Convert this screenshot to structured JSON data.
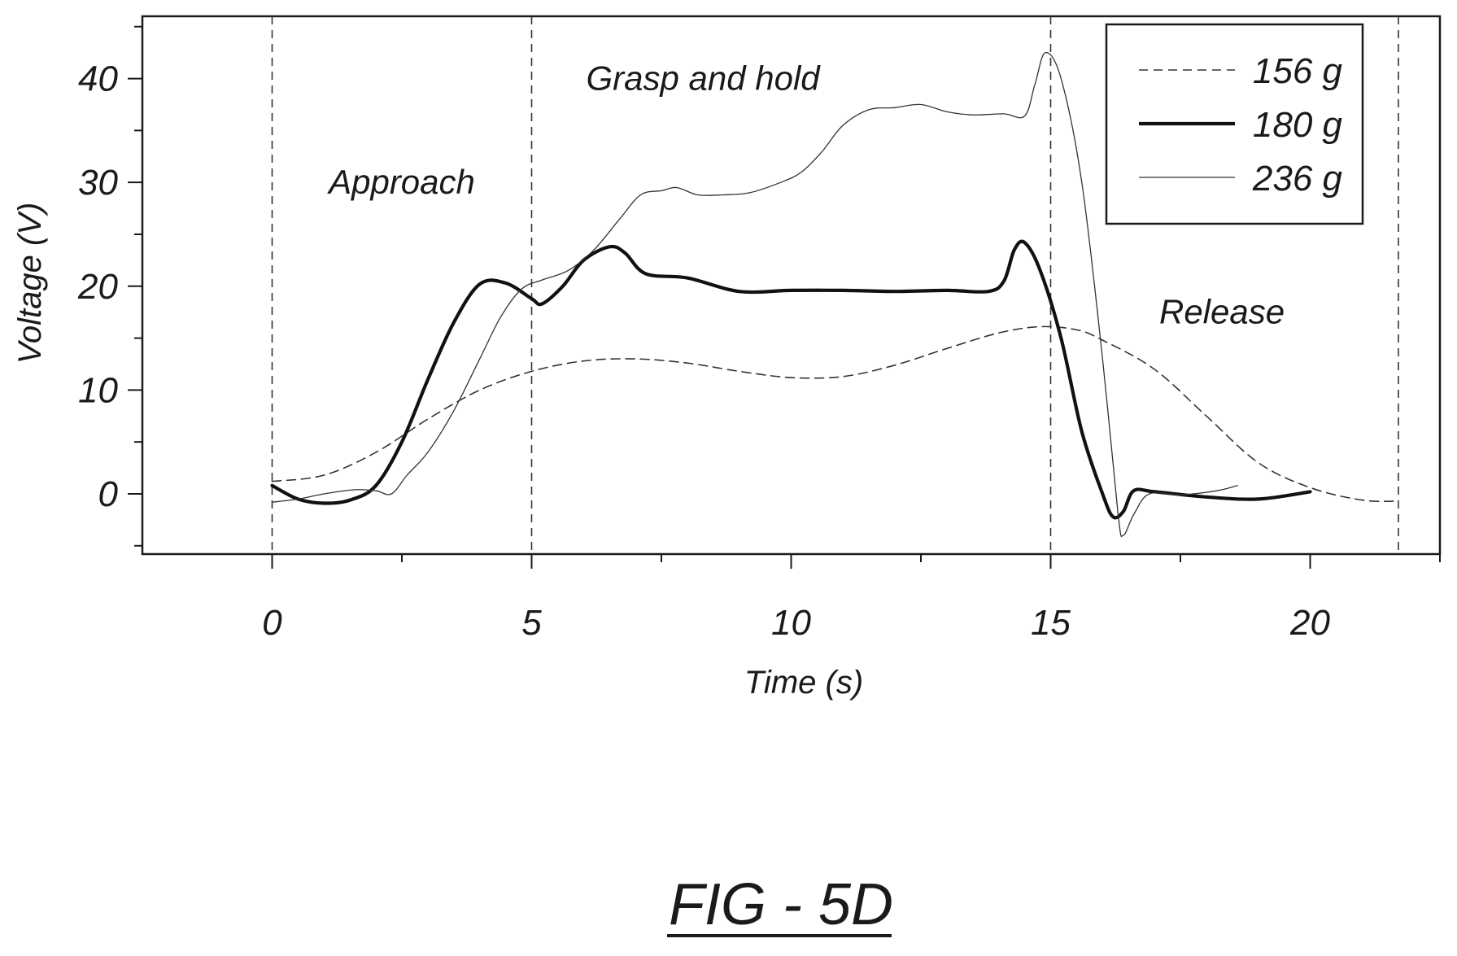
{
  "chart_data": {
    "type": "line",
    "xlabel": "Time (s)",
    "ylabel": "Voltage (V)",
    "xlim": [
      -2.5,
      22.5
    ],
    "ylim": [
      -5.8,
      46
    ],
    "x_ticks": [
      0,
      5,
      10,
      15,
      20
    ],
    "y_ticks": [
      0,
      10,
      20,
      30,
      40
    ],
    "x_minor_step": 2.5,
    "y_minor_step": 5,
    "grid": false,
    "legend_position": "top-right",
    "phase_boundaries": [
      0,
      5,
      15,
      21.7
    ],
    "annotations": [
      {
        "text": "Approach",
        "x": 2.5,
        "y": 30
      },
      {
        "text": "Grasp and hold",
        "x": 8.3,
        "y": 40
      },
      {
        "text": "Release",
        "x": 18.3,
        "y": 17.5
      }
    ],
    "series": [
      {
        "name": "156 g",
        "style": "dashed",
        "points": [
          [
            0,
            1.2
          ],
          [
            1,
            1.8
          ],
          [
            2,
            4
          ],
          [
            3,
            7.2
          ],
          [
            4,
            10
          ],
          [
            5,
            11.8
          ],
          [
            6,
            12.8
          ],
          [
            7,
            13
          ],
          [
            8,
            12.6
          ],
          [
            9,
            11.8
          ],
          [
            10,
            11.2
          ],
          [
            11,
            11.3
          ],
          [
            12,
            12.4
          ],
          [
            13,
            14
          ],
          [
            14,
            15.5
          ],
          [
            14.8,
            16.1
          ],
          [
            15.5,
            15.8
          ],
          [
            16,
            14.8
          ],
          [
            17,
            12
          ],
          [
            18,
            7.5
          ],
          [
            19,
            3
          ],
          [
            20,
            0.6
          ],
          [
            21,
            -0.6
          ],
          [
            21.7,
            -0.7
          ]
        ]
      },
      {
        "name": "180 g",
        "style": "thick",
        "points": [
          [
            0,
            0.8
          ],
          [
            0.5,
            -0.5
          ],
          [
            1,
            -0.9
          ],
          [
            1.5,
            -0.6
          ],
          [
            2,
            0.8
          ],
          [
            2.5,
            5
          ],
          [
            3,
            11
          ],
          [
            3.5,
            16.5
          ],
          [
            4,
            20.2
          ],
          [
            4.5,
            20.3
          ],
          [
            5,
            18.8
          ],
          [
            5.2,
            18.3
          ],
          [
            5.6,
            20
          ],
          [
            6,
            22.5
          ],
          [
            6.5,
            23.8
          ],
          [
            6.8,
            23.2
          ],
          [
            7.2,
            21.2
          ],
          [
            8,
            20.8
          ],
          [
            9,
            19.5
          ],
          [
            10,
            19.6
          ],
          [
            11,
            19.6
          ],
          [
            12,
            19.5
          ],
          [
            13,
            19.6
          ],
          [
            13.8,
            19.5
          ],
          [
            14.1,
            20.5
          ],
          [
            14.3,
            23.5
          ],
          [
            14.5,
            24.2
          ],
          [
            14.8,
            21.5
          ],
          [
            15.2,
            15
          ],
          [
            15.6,
            6
          ],
          [
            16,
            0
          ],
          [
            16.2,
            -2.2
          ],
          [
            16.4,
            -1.7
          ],
          [
            16.6,
            0.3
          ],
          [
            17,
            0.2
          ],
          [
            18,
            -0.3
          ],
          [
            19,
            -0.5
          ],
          [
            20,
            0.2
          ]
        ]
      },
      {
        "name": "236 g",
        "style": "thin",
        "points": [
          [
            0,
            -0.8
          ],
          [
            0.5,
            -0.5
          ],
          [
            1,
            0
          ],
          [
            1.6,
            0.4
          ],
          [
            2,
            0.3
          ],
          [
            2.3,
            0
          ],
          [
            2.6,
            1.8
          ],
          [
            3,
            4
          ],
          [
            3.5,
            8
          ],
          [
            4,
            13
          ],
          [
            4.4,
            17
          ],
          [
            4.8,
            19.7
          ],
          [
            5.2,
            20.6
          ],
          [
            5.7,
            21.5
          ],
          [
            6.2,
            23.5
          ],
          [
            6.7,
            26.5
          ],
          [
            7.1,
            28.8
          ],
          [
            7.5,
            29.2
          ],
          [
            7.8,
            29.5
          ],
          [
            8.2,
            28.8
          ],
          [
            8.7,
            28.8
          ],
          [
            9.2,
            29
          ],
          [
            9.8,
            30
          ],
          [
            10.2,
            31
          ],
          [
            10.6,
            33
          ],
          [
            11,
            35.5
          ],
          [
            11.5,
            37
          ],
          [
            12,
            37.2
          ],
          [
            12.5,
            37.5
          ],
          [
            13,
            36.8
          ],
          [
            13.5,
            36.5
          ],
          [
            14.1,
            36.6
          ],
          [
            14.5,
            36.4
          ],
          [
            14.7,
            39.5
          ],
          [
            14.9,
            42.5
          ],
          [
            15.2,
            40
          ],
          [
            15.6,
            30
          ],
          [
            16,
            13
          ],
          [
            16.3,
            -2
          ],
          [
            16.4,
            -4
          ],
          [
            16.6,
            -2
          ],
          [
            16.9,
            0
          ],
          [
            17.5,
            -0.1
          ],
          [
            18.2,
            0.3
          ],
          [
            18.6,
            0.8
          ]
        ]
      }
    ]
  },
  "figure_label": "FIG - 5D"
}
